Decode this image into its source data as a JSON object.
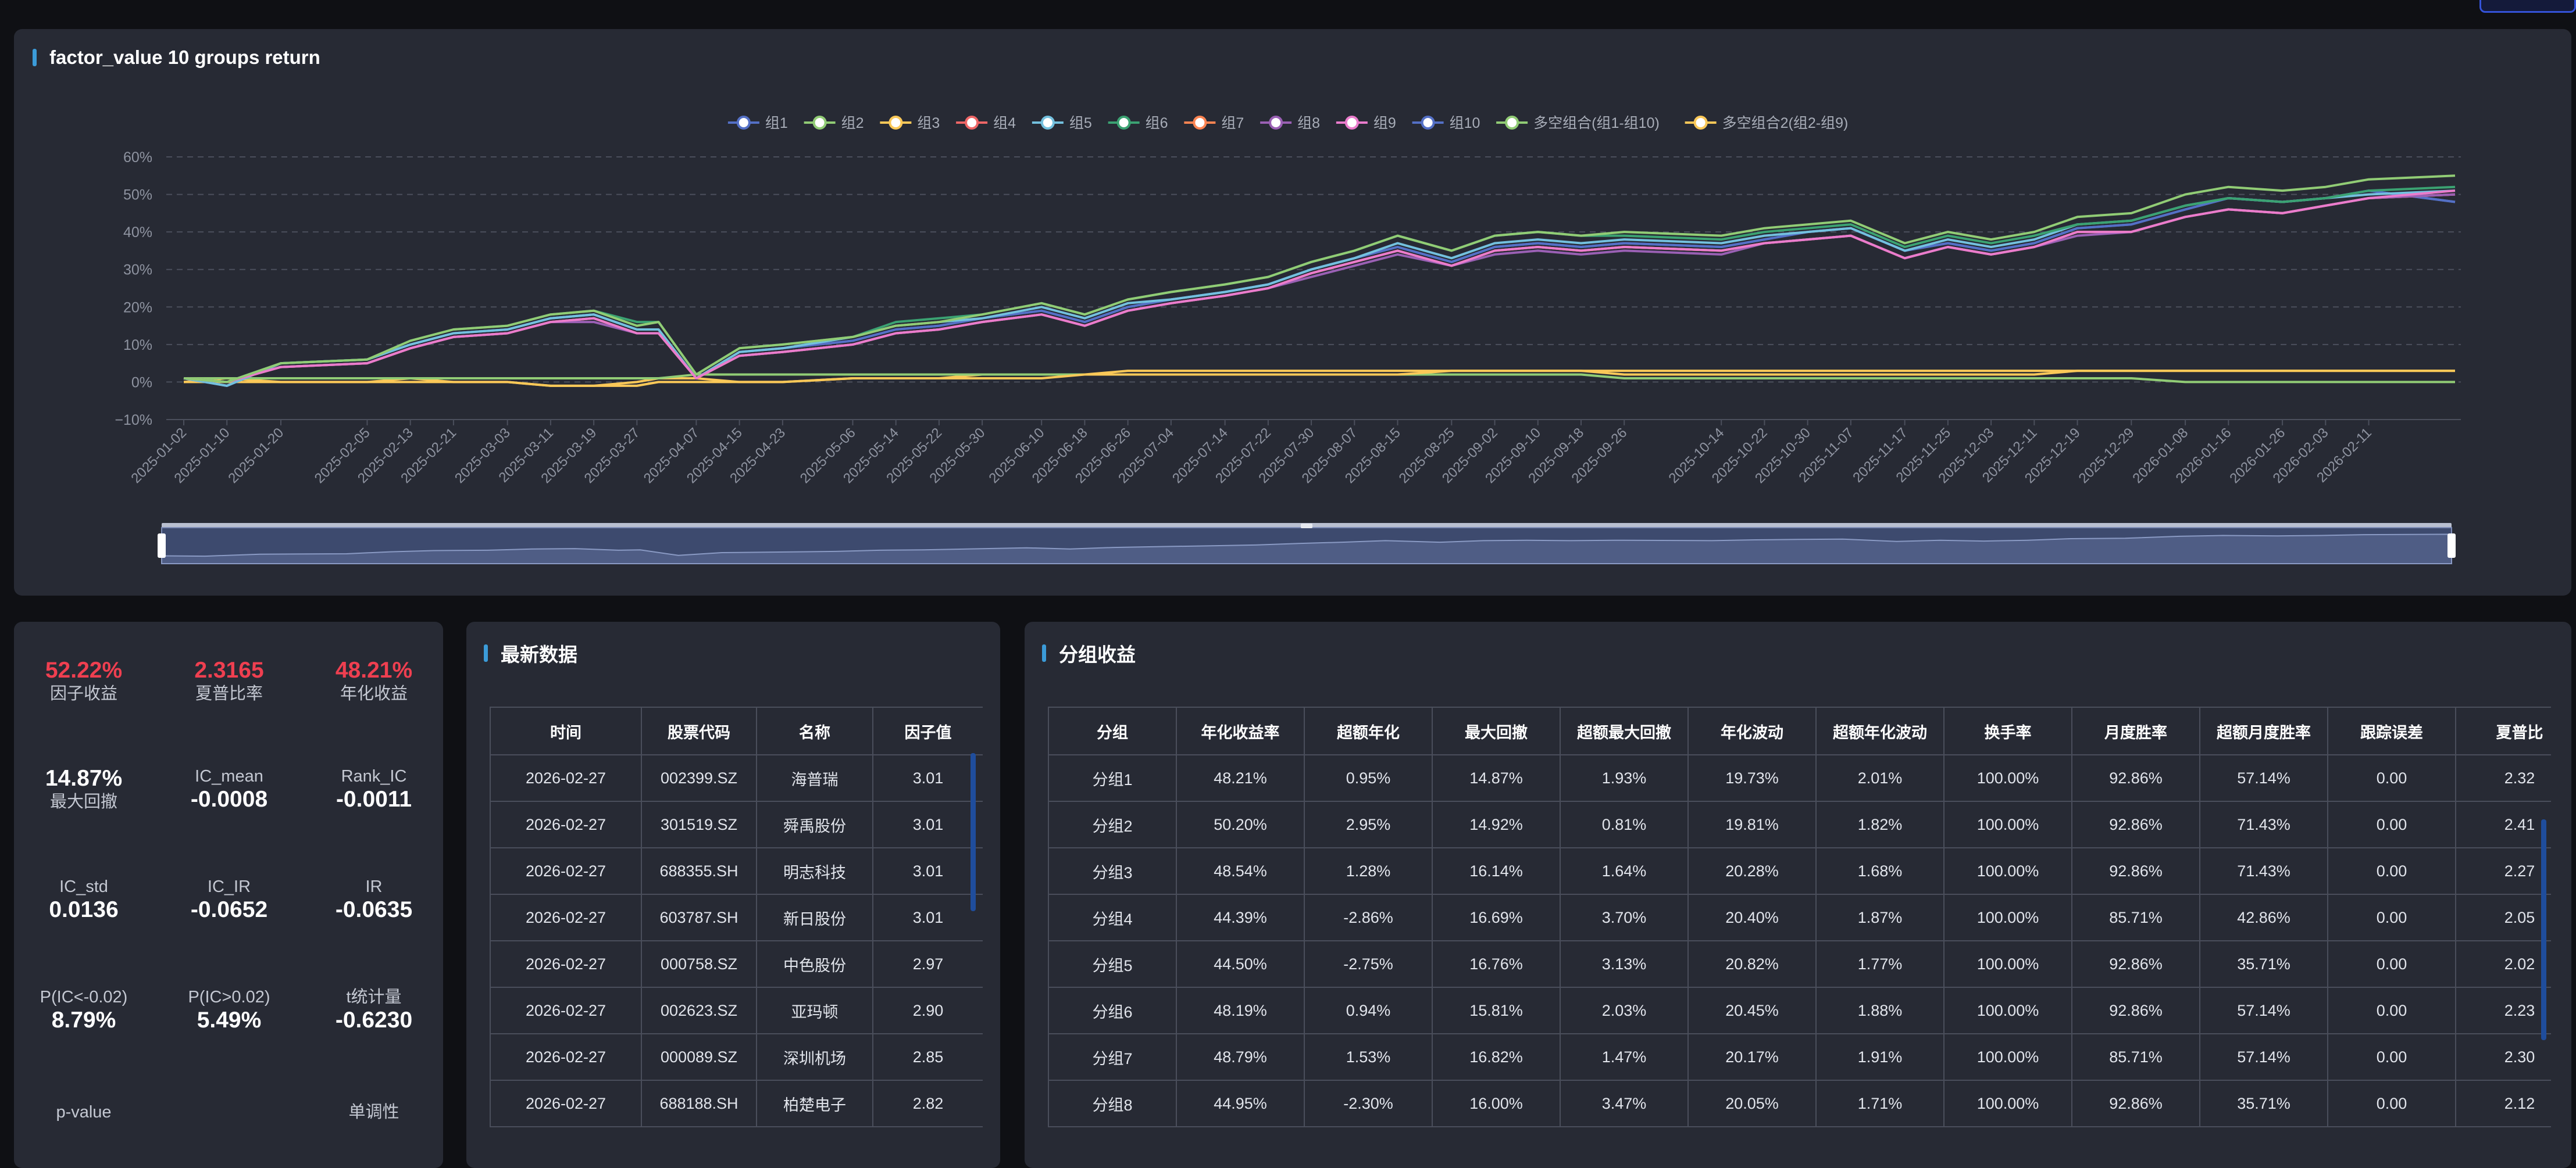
{
  "chart": {
    "title": "factor_value 10 groups return",
    "legend": [
      {
        "name": "组1",
        "color": "#5470c6"
      },
      {
        "name": "组2",
        "color": "#91cc75"
      },
      {
        "name": "组3",
        "color": "#fac858"
      },
      {
        "name": "组4",
        "color": "#ee6666"
      },
      {
        "name": "组5",
        "color": "#73c0de"
      },
      {
        "name": "组6",
        "color": "#3ba272"
      },
      {
        "name": "组7",
        "color": "#fc8452"
      },
      {
        "name": "组8",
        "color": "#9a60b4"
      },
      {
        "name": "组9",
        "color": "#ea7ccc"
      },
      {
        "name": "组10",
        "color": "#5470c6"
      },
      {
        "name": "多空组合(组1-组10)",
        "color": "#91cc75"
      },
      {
        "name": "多空组合2(组2-组9)",
        "color": "#fac858"
      }
    ]
  },
  "chart_data": {
    "type": "line",
    "title": "factor_value 10 groups return",
    "y_tick_labels": [
      "60%",
      "50%",
      "40%",
      "30%",
      "20%",
      "10%",
      "0%",
      "−10%"
    ],
    "ylim": [
      -10,
      60
    ],
    "grid": true,
    "legend_position": "top",
    "x_tick_labels": [
      "2025-01-02",
      "2025-01-10",
      "2025-01-20",
      "2025-02-05",
      "2025-02-13",
      "2025-02-21",
      "2025-03-03",
      "2025-03-11",
      "2025-03-19",
      "2025-03-27",
      "2025-04-07",
      "2025-04-15",
      "2025-04-23",
      "2025-05-06",
      "2025-05-14",
      "2025-05-22",
      "2025-05-30",
      "2025-06-10",
      "2025-06-18",
      "2025-06-26",
      "2025-07-04",
      "2025-07-14",
      "2025-07-22",
      "2025-07-30",
      "2025-08-07",
      "2025-08-15",
      "2025-08-25",
      "2025-09-02",
      "2025-09-10",
      "2025-09-18",
      "2025-09-26",
      "2025-10-14",
      "2025-10-22",
      "2025-10-30",
      "2025-11-07",
      "2025-11-17",
      "2025-11-25",
      "2025-12-03",
      "2025-12-11",
      "2025-12-19",
      "2025-12-29",
      "2026-01-08",
      "2026-01-16",
      "2026-01-26",
      "2026-02-03",
      "2026-02-11"
    ],
    "x": [
      "2025-01-02",
      "2025-01-10",
      "2025-01-20",
      "2025-02-05",
      "2025-02-13",
      "2025-02-21",
      "2025-03-03",
      "2025-03-11",
      "2025-03-19",
      "2025-03-27",
      "2025-03-31",
      "2025-04-07",
      "2025-04-15",
      "2025-04-23",
      "2025-05-06",
      "2025-05-14",
      "2025-05-22",
      "2025-05-30",
      "2025-06-10",
      "2025-06-18",
      "2025-06-26",
      "2025-07-04",
      "2025-07-14",
      "2025-07-22",
      "2025-07-30",
      "2025-08-07",
      "2025-08-15",
      "2025-08-25",
      "2025-09-02",
      "2025-09-10",
      "2025-09-18",
      "2025-09-26",
      "2025-10-14",
      "2025-10-22",
      "2025-10-30",
      "2025-11-07",
      "2025-11-17",
      "2025-11-25",
      "2025-12-03",
      "2025-12-11",
      "2025-12-19",
      "2025-12-29",
      "2026-01-08",
      "2026-01-16",
      "2026-01-26",
      "2026-02-03",
      "2026-02-11",
      "2026-02-27"
    ],
    "series": [
      {
        "name": "组1",
        "color": "#5470c6",
        "values": [
          1,
          -1,
          5,
          6,
          10,
          13,
          14,
          17,
          18,
          14,
          14,
          1,
          8,
          9,
          11,
          14,
          15,
          17,
          19,
          16,
          20,
          22,
          24,
          26,
          30,
          33,
          36,
          32,
          36,
          37,
          36,
          37,
          36,
          38,
          40,
          41,
          35,
          37,
          35,
          37,
          41,
          42,
          46,
          49,
          48,
          49,
          51,
          48
        ]
      },
      {
        "name": "组2",
        "color": "#91cc75",
        "values": [
          1,
          0,
          5,
          6,
          11,
          14,
          15,
          18,
          19,
          15,
          16,
          2,
          9,
          10,
          12,
          15,
          16,
          18,
          21,
          18,
          22,
          24,
          26,
          28,
          32,
          35,
          39,
          35,
          39,
          40,
          39,
          40,
          39,
          41,
          42,
          43,
          37,
          40,
          38,
          40,
          44,
          45,
          50,
          52,
          51,
          52,
          54,
          55
        ]
      },
      {
        "name": "组3",
        "color": "#fac858",
        "values": [
          0,
          1,
          0,
          0,
          1,
          0,
          0,
          -1,
          -1,
          0,
          1,
          1,
          0,
          0,
          1,
          1,
          1,
          2,
          2,
          2,
          3,
          3,
          3,
          3,
          3,
          3,
          3,
          3,
          3,
          3,
          3,
          3,
          3,
          3,
          3,
          3,
          3,
          3,
          3,
          3,
          3,
          3,
          3,
          3,
          3,
          3,
          3,
          3
        ]
      },
      {
        "name": "组4",
        "color": "#ee6666",
        "values": [
          1,
          0,
          4,
          5,
          9,
          12,
          13,
          16,
          17,
          13,
          13,
          1,
          7,
          8,
          10,
          13,
          14,
          16,
          18,
          15,
          19,
          21,
          23,
          25,
          29,
          32,
          35,
          31,
          35,
          36,
          35,
          36,
          35,
          37,
          38,
          39,
          33,
          36,
          34,
          36,
          40,
          40,
          44,
          46,
          45,
          47,
          49,
          50
        ]
      },
      {
        "name": "组5",
        "color": "#73c0de",
        "values": [
          1,
          -1,
          5,
          6,
          10,
          13,
          14,
          17,
          18,
          14,
          14,
          1,
          8,
          9,
          12,
          15,
          16,
          17,
          20,
          17,
          21,
          22,
          24,
          26,
          30,
          33,
          37,
          33,
          37,
          38,
          37,
          38,
          37,
          39,
          40,
          41,
          35,
          38,
          36,
          38,
          42,
          43,
          47,
          49,
          48,
          49,
          50,
          51
        ]
      },
      {
        "name": "组6",
        "color": "#3ba272",
        "values": [
          1,
          0,
          5,
          6,
          11,
          14,
          15,
          18,
          19,
          16,
          16,
          2,
          9,
          10,
          12,
          16,
          17,
          18,
          21,
          18,
          22,
          24,
          26,
          28,
          32,
          35,
          39,
          35,
          39,
          40,
          39,
          39,
          38,
          40,
          41,
          42,
          36,
          39,
          37,
          39,
          42,
          43,
          47,
          49,
          48,
          49,
          51,
          52
        ]
      },
      {
        "name": "组7",
        "color": "#fc8452",
        "values": [
          1,
          0,
          4,
          5,
          9,
          12,
          13,
          16,
          17,
          13,
          13,
          1,
          7,
          8,
          10,
          13,
          14,
          16,
          18,
          15,
          19,
          21,
          23,
          25,
          29,
          32,
          35,
          31,
          35,
          36,
          35,
          36,
          35,
          37,
          38,
          39,
          33,
          36,
          34,
          36,
          40,
          40,
          44,
          46,
          45,
          47,
          49,
          50
        ]
      },
      {
        "name": "组8",
        "color": "#9a60b4",
        "values": [
          1,
          0,
          4,
          5,
          9,
          12,
          13,
          16,
          16,
          13,
          13,
          1,
          7,
          8,
          10,
          13,
          14,
          16,
          18,
          15,
          19,
          21,
          23,
          25,
          28,
          31,
          34,
          31,
          34,
          35,
          34,
          35,
          34,
          37,
          38,
          39,
          33,
          36,
          34,
          36,
          39,
          40,
          44,
          46,
          45,
          47,
          49,
          50
        ]
      },
      {
        "name": "组9",
        "color": "#ea7ccc",
        "values": [
          1,
          0,
          4,
          5,
          9,
          12,
          13,
          16,
          17,
          13,
          13,
          1,
          7,
          8,
          10,
          13,
          14,
          16,
          18,
          15,
          19,
          21,
          23,
          25,
          29,
          32,
          35,
          31,
          35,
          36,
          35,
          36,
          35,
          37,
          38,
          39,
          33,
          36,
          34,
          36,
          40,
          40,
          44,
          46,
          45,
          47,
          49,
          51
        ]
      },
      {
        "name": "组10",
        "color": "#5470c6",
        "values": [
          1,
          -1,
          5,
          6,
          10,
          13,
          14,
          17,
          18,
          14,
          14,
          1,
          8,
          9,
          11,
          14,
          15,
          17,
          19,
          16,
          20,
          22,
          24,
          26,
          30,
          33,
          36,
          32,
          36,
          37,
          36,
          37,
          36,
          38,
          40,
          41,
          35,
          37,
          35,
          37,
          41,
          42,
          46,
          49,
          48,
          49,
          51,
          48
        ]
      },
      {
        "name": "多空组合(组1-组10)",
        "color": "#91cc75",
        "values": [
          1,
          1,
          1,
          1,
          1,
          1,
          1,
          1,
          1,
          1,
          1,
          2,
          2,
          2,
          2,
          2,
          2,
          2,
          2,
          2,
          2,
          2,
          2,
          2,
          2,
          2,
          2,
          2,
          2,
          2,
          2,
          1,
          1,
          1,
          1,
          1,
          1,
          1,
          1,
          1,
          1,
          1,
          0,
          0,
          0,
          0,
          0,
          0
        ]
      },
      {
        "name": "多空组合2(组2-组9)",
        "color": "#fac858",
        "values": [
          0,
          0,
          0,
          0,
          0,
          0,
          0,
          -1,
          -1,
          -1,
          0,
          0,
          0,
          0,
          1,
          1,
          1,
          1,
          1,
          2,
          2,
          2,
          2,
          2,
          2,
          2,
          2,
          3,
          3,
          3,
          3,
          2,
          2,
          2,
          2,
          2,
          2,
          2,
          2,
          2,
          3,
          3,
          3,
          3,
          3,
          3,
          3,
          3
        ]
      }
    ]
  },
  "metrics": {
    "factor_return": {
      "label": "因子收益",
      "value": "52.22%"
    },
    "sharpe": {
      "label": "夏普比率",
      "value": "2.3165"
    },
    "annual_return": {
      "label": "年化收益",
      "value": "48.21%"
    },
    "max_drawdown": {
      "label": "最大回撤",
      "value": "14.87%"
    },
    "ic_mean": {
      "label": "IC_mean",
      "value": "-0.0008"
    },
    "rank_ic": {
      "label": "Rank_IC",
      "value": "-0.0011"
    },
    "ic_std": {
      "label": "IC_std",
      "value": "0.0136"
    },
    "ic_ir": {
      "label": "IC_IR",
      "value": "-0.0652"
    },
    "ir": {
      "label": "IR",
      "value": "-0.0635"
    },
    "p_ic_neg": {
      "label": "P(IC<-0.02)",
      "value": "8.79%"
    },
    "p_ic_pos": {
      "label": "P(IC>0.02)",
      "value": "5.49%"
    },
    "t_stat": {
      "label": "t统计量",
      "value": "-0.6230"
    },
    "p_value": {
      "label": "p-value"
    },
    "monotonic": {
      "label": "单调性"
    }
  },
  "latest": {
    "title": "最新数据",
    "columns": [
      "时间",
      "股票代码",
      "名称",
      "因子值"
    ],
    "rows": [
      [
        "2026-02-27",
        "002399.SZ",
        "海普瑞",
        "3.01"
      ],
      [
        "2026-02-27",
        "301519.SZ",
        "舜禹股份",
        "3.01"
      ],
      [
        "2026-02-27",
        "688355.SH",
        "明志科技",
        "3.01"
      ],
      [
        "2026-02-27",
        "603787.SH",
        "新日股份",
        "3.01"
      ],
      [
        "2026-02-27",
        "000758.SZ",
        "中色股份",
        "2.97"
      ],
      [
        "2026-02-27",
        "002623.SZ",
        "亚玛顿",
        "2.90"
      ],
      [
        "2026-02-27",
        "000089.SZ",
        "深圳机场",
        "2.85"
      ],
      [
        "2026-02-27",
        "688188.SH",
        "柏楚电子",
        "2.82"
      ]
    ]
  },
  "groups": {
    "title": "分组收益",
    "columns": [
      "分组",
      "年化收益率",
      "超额年化",
      "最大回撤",
      "超额最大回撤",
      "年化波动",
      "超额年化波动",
      "换手率",
      "月度胜率",
      "超额月度胜率",
      "跟踪误差",
      "夏普比"
    ],
    "rows": [
      [
        "分组1",
        "48.21%",
        "0.95%",
        "14.87%",
        "1.93%",
        "19.73%",
        "2.01%",
        "100.00%",
        "92.86%",
        "57.14%",
        "0.00",
        "2.32"
      ],
      [
        "分组2",
        "50.20%",
        "2.95%",
        "14.92%",
        "0.81%",
        "19.81%",
        "1.82%",
        "100.00%",
        "92.86%",
        "71.43%",
        "0.00",
        "2.41"
      ],
      [
        "分组3",
        "48.54%",
        "1.28%",
        "16.14%",
        "1.64%",
        "20.28%",
        "1.68%",
        "100.00%",
        "92.86%",
        "71.43%",
        "0.00",
        "2.27"
      ],
      [
        "分组4",
        "44.39%",
        "-2.86%",
        "16.69%",
        "3.70%",
        "20.40%",
        "1.87%",
        "100.00%",
        "85.71%",
        "42.86%",
        "0.00",
        "2.05"
      ],
      [
        "分组5",
        "44.50%",
        "-2.75%",
        "16.76%",
        "3.13%",
        "20.82%",
        "1.77%",
        "100.00%",
        "92.86%",
        "35.71%",
        "0.00",
        "2.02"
      ],
      [
        "分组6",
        "48.19%",
        "0.94%",
        "15.81%",
        "2.03%",
        "20.45%",
        "1.88%",
        "100.00%",
        "92.86%",
        "57.14%",
        "0.00",
        "2.23"
      ],
      [
        "分组7",
        "48.79%",
        "1.53%",
        "16.82%",
        "1.47%",
        "20.17%",
        "1.91%",
        "100.00%",
        "85.71%",
        "57.14%",
        "0.00",
        "2.30"
      ],
      [
        "分组8",
        "44.95%",
        "-2.30%",
        "16.00%",
        "3.47%",
        "20.05%",
        "1.71%",
        "100.00%",
        "92.86%",
        "35.71%",
        "0.00",
        "2.12"
      ]
    ]
  }
}
